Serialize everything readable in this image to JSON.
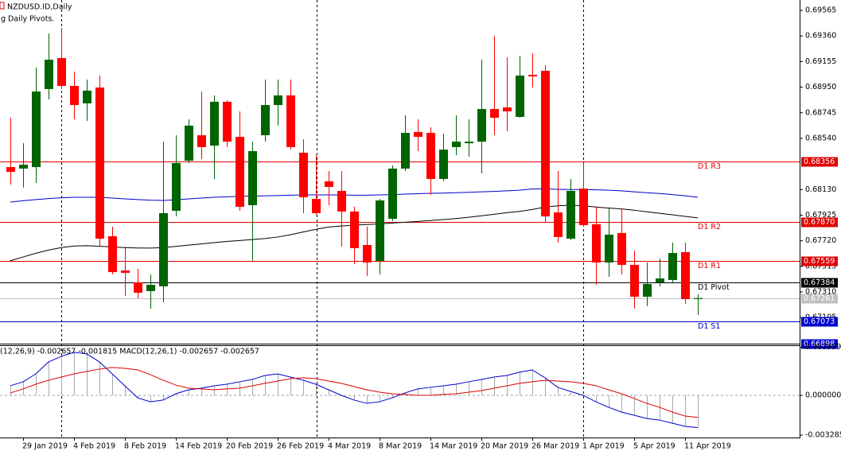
{
  "chart_data": [
    {
      "type": "candlestick",
      "title": "NZDUSD.ID,Daily",
      "subtitle": "g Daily Pivots.",
      "up_color": "#006400",
      "down_color": "#ff0000",
      "categories": [
        null,
        "29 Jan 2019",
        null,
        null,
        null,
        "4 Feb 2019",
        null,
        null,
        null,
        "8 Feb 2019",
        null,
        null,
        null,
        "14 Feb 2019",
        null,
        null,
        null,
        "20 Feb 2019",
        null,
        null,
        null,
        "26 Feb 2019",
        null,
        null,
        null,
        "4 Mar 2019",
        null,
        null,
        null,
        "8 Mar 2019",
        null,
        null,
        null,
        "14 Mar 2019",
        null,
        null,
        null,
        "20 Mar 2019",
        null,
        null,
        null,
        "26 Mar 2019",
        null,
        null,
        null,
        "1 Apr 2019",
        null,
        null,
        null,
        "5 Apr 2019",
        null,
        null,
        null,
        "11 Apr 2019",
        null
      ],
      "ohlc": [
        [
          0.6831,
          0.68705,
          0.6817,
          0.68272
        ],
        [
          0.68298,
          0.68501,
          0.68145,
          0.68329
        ],
        [
          0.6831,
          0.69107,
          0.68183,
          0.68915
        ],
        [
          0.68935,
          0.6938,
          0.68852,
          0.6917
        ],
        [
          0.69183,
          0.69425,
          0.68935,
          0.6896
        ],
        [
          0.6896,
          0.69075,
          0.68692,
          0.68807
        ],
        [
          0.6882,
          0.69011,
          0.6868,
          0.68922
        ],
        [
          0.68947,
          0.69043,
          0.67673,
          0.67737
        ],
        [
          0.67756,
          0.67833,
          0.6745,
          0.67469
        ],
        [
          0.67482,
          0.67673,
          0.67278,
          0.67463
        ],
        [
          0.67387,
          0.67495,
          0.67259,
          0.67304
        ],
        [
          0.67317,
          0.6745,
          0.67176,
          0.67367
        ],
        [
          0.67355,
          0.68514,
          0.67227,
          0.67941
        ],
        [
          0.6796,
          0.68565,
          0.67915,
          0.68342
        ],
        [
          0.68361,
          0.68692,
          0.68342,
          0.68642
        ],
        [
          0.68565,
          0.68915,
          0.68374,
          0.6847
        ],
        [
          0.68482,
          0.68884,
          0.68215,
          0.68833
        ],
        [
          0.68833,
          0.68845,
          0.6847,
          0.68514
        ],
        [
          0.68552,
          0.68756,
          0.6796,
          0.67992
        ],
        [
          0.68005,
          0.68514,
          0.67559,
          0.68438
        ],
        [
          0.68565,
          0.69011,
          0.68514,
          0.68807
        ],
        [
          0.68807,
          0.69011,
          0.68642,
          0.68884
        ],
        [
          0.68884,
          0.69011,
          0.6845,
          0.6847
        ],
        [
          0.68425,
          0.68533,
          0.67941,
          0.68068
        ],
        [
          0.68055,
          0.68406,
          0.67928,
          0.67941
        ],
        [
          0.68196,
          0.68278,
          0.68005,
          0.68151
        ],
        [
          0.68119,
          0.68278,
          0.67673,
          0.67954
        ],
        [
          0.67954,
          0.67992,
          0.67533,
          0.67661
        ],
        [
          0.67686,
          0.67833,
          0.67438,
          0.67546
        ],
        [
          0.67559,
          0.68055,
          0.6745,
          0.68043
        ],
        [
          0.67896,
          0.68323,
          0.67877,
          0.68298
        ],
        [
          0.68298,
          0.68724,
          0.68278,
          0.68584
        ],
        [
          0.68591,
          0.68692,
          0.68438,
          0.68552
        ],
        [
          0.68584,
          0.68629,
          0.68087,
          0.68215
        ],
        [
          0.68215,
          0.68578,
          0.68196,
          0.6845
        ],
        [
          0.6847,
          0.68724,
          0.68406,
          0.68514
        ],
        [
          0.68501,
          0.68692,
          0.68393,
          0.68514
        ],
        [
          0.68514,
          0.6917,
          0.68259,
          0.68775
        ],
        [
          0.68775,
          0.69361,
          0.68565,
          0.68705
        ],
        [
          0.68788,
          0.69189,
          0.68597,
          0.68756
        ],
        [
          0.68712,
          0.69202,
          0.68705,
          0.69043
        ],
        [
          0.69049,
          0.69221,
          0.68947,
          0.69036
        ],
        [
          0.69081,
          0.69126,
          0.67864,
          0.67915
        ],
        [
          0.67947,
          0.68278,
          0.67705,
          0.6775
        ],
        [
          0.67737,
          0.68215,
          0.67724,
          0.68119
        ],
        [
          0.68138,
          0.68342,
          0.67833,
          0.67845
        ],
        [
          0.67852,
          0.67992,
          0.67367,
          0.67546
        ],
        [
          0.67546,
          0.67979,
          0.67431,
          0.67769
        ],
        [
          0.67782,
          0.67979,
          0.6745,
          0.67527
        ],
        [
          0.67527,
          0.67641,
          0.67176,
          0.67272
        ],
        [
          0.67272,
          0.67546,
          0.67196,
          0.67374
        ],
        [
          0.67387,
          0.67578,
          0.67355,
          0.67418
        ],
        [
          0.67406,
          0.67705,
          0.67387,
          0.67622
        ],
        [
          0.67629,
          0.67705,
          0.67215,
          0.67253
        ],
        [
          0.67253,
          0.67291,
          0.67125,
          0.67261
        ]
      ],
      "lines": [
        {
          "color": "#0000cc",
          "values": [
            0.6803,
            0.6804,
            0.6805,
            0.68058,
            0.68064,
            0.68068,
            0.68068,
            0.68068,
            0.68062,
            0.68055,
            0.6805,
            0.68045,
            0.68043,
            0.68048,
            0.68055,
            0.68062,
            0.68068,
            0.68072,
            0.68075,
            0.68078,
            0.6808,
            0.68082,
            0.68085,
            0.68087,
            0.68087,
            0.68087,
            0.68087,
            0.68085,
            0.68085,
            0.68087,
            0.6809,
            0.68094,
            0.68097,
            0.681,
            0.68102,
            0.68105,
            0.68108,
            0.68112,
            0.68115,
            0.6812,
            0.68125,
            0.68135,
            0.68135,
            0.68132,
            0.6813,
            0.6813,
            0.68128,
            0.68125,
            0.6812,
            0.68112,
            0.68105,
            0.68098,
            0.6809,
            0.6808,
            0.68068
          ]
        },
        {
          "color": "#000000",
          "values": [
            0.6756,
            0.6759,
            0.6762,
            0.67645,
            0.67665,
            0.67678,
            0.6768,
            0.67676,
            0.6767,
            0.67665,
            0.67662,
            0.67661,
            0.67665,
            0.67675,
            0.67685,
            0.67695,
            0.67705,
            0.67715,
            0.67722,
            0.6773,
            0.67738,
            0.6775,
            0.67768,
            0.6779,
            0.67812,
            0.6783,
            0.67838,
            0.67845,
            0.6785,
            0.67855,
            0.67862,
            0.67868,
            0.67875,
            0.67882,
            0.6789,
            0.67898,
            0.67908,
            0.6792,
            0.67932,
            0.67945,
            0.67955,
            0.6797,
            0.6799,
            0.68,
            0.68005,
            0.68,
            0.6799,
            0.67982,
            0.67975,
            0.67965,
            0.67952,
            0.6794,
            0.67928,
            0.67915,
            0.67903
          ]
        }
      ],
      "levels": [
        {
          "name": "D1 R3",
          "color": "#e00000",
          "price": {
            "value": 0.68356,
            "label": "0.68356"
          }
        },
        {
          "name": "D1 R2",
          "color": "#e00000",
          "price": {
            "value": 0.6787,
            "label": "0.67870"
          }
        },
        {
          "name": "D1 R1",
          "color": "#e00000",
          "price": {
            "value": 0.67559,
            "label": "0.67559"
          }
        },
        {
          "name": "D1 Pivot",
          "color": "#000000",
          "price": {
            "value": 0.67384,
            "label": "0.67384"
          }
        },
        {
          "name": "D1 S1",
          "color": "#0000cc",
          "price": {
            "value": 0.67073,
            "label": "0.67073"
          }
        },
        {
          "color": "#c0c0c0",
          "price": {
            "value": 0.67261,
            "label": "0.67261"
          }
        },
        {
          "color": "#0000cc",
          "price": {
            "value": 0.66898,
            "label": "0.66898"
          }
        }
      ],
      "ylim": [
        0.66896,
        0.69648
      ],
      "yticks": [
        0.69565,
        {
          "value": 0.6936,
          "label": "0.69360"
        },
        0.69155,
        {
          "value": 0.6895,
          "label": "0.68950"
        },
        0.68745,
        {
          "value": 0.6854,
          "label": "0.68540"
        },
        {
          "value": 0.6813,
          "label": "0.68130"
        },
        0.67925,
        {
          "value": 0.6772,
          "label": "0.67720"
        },
        0.67515,
        {
          "value": 0.6731,
          "label": "0.67310"
        },
        0.67105
      ]
    },
    {
      "type": "macd",
      "title": "(12,26,9) -0.002657 -0.001815 MACD(12,26,1) -0.002657 -0.002657",
      "series": [
        {
          "color": "#0000cc",
          "bar_color": "#a8a8a8",
          "values": [
            0.00079,
            0.00112,
            0.00177,
            0.00276,
            0.00322,
            0.00355,
            0.00342,
            0.00276,
            0.00177,
            0.00079,
            -0.0002,
            -0.00053,
            -0.00039,
            0.00013,
            0.00046,
            0.00059,
            0.00079,
            0.00092,
            0.00112,
            0.00131,
            0.00164,
            0.00177,
            0.00151,
            0.00125,
            0.00092,
            0.00046,
            0,
            -0.00039,
            -0.00066,
            -0.00053,
            -0.0002,
            0.0002,
            0.00053,
            0.00066,
            0.00079,
            0.00092,
            0.00112,
            0.00131,
            0.00151,
            0.00164,
            0.00191,
            0.0021,
            0.00145,
            0.00066,
            0.00033,
            0,
            -0.00053,
            -0.00099,
            -0.00138,
            -0.00164,
            -0.00191,
            -0.00204,
            -0.0023,
            -0.00256,
            -0.00266
          ]
        },
        {
          "color": "#dd0000",
          "values": [
            0.0002,
            0.00053,
            0.00092,
            0.00125,
            0.00151,
            0.00177,
            0.00197,
            0.00217,
            0.0023,
            0.00223,
            0.0021,
            0.00171,
            0.00125,
            0.00085,
            0.00059,
            0.00053,
            0.00046,
            0.00053,
            0.00059,
            0.00079,
            0.00099,
            0.00118,
            0.00138,
            0.00145,
            0.00138,
            0.00118,
            0.00099,
            0.00072,
            0.00046,
            0.00026,
            0.00013,
            7e-05,
            0,
            0,
            7e-05,
            0.00013,
            0.00026,
            0.00039,
            0.00059,
            0.00079,
            0.00099,
            0.00112,
            0.00125,
            0.00118,
            0.00112,
            0.00099,
            0.00079,
            0.00046,
            0.00013,
            -0.00026,
            -0.00066,
            -0.00099,
            -0.00138,
            -0.00171,
            -0.00182
          ]
        }
      ],
      "ylim": [
        -0.00348,
        0.00407
      ],
      "yticks": [
        0.003959,
        {
          "value": 0,
          "label": "0.000000"
        },
        -0.003285
      ]
    }
  ]
}
